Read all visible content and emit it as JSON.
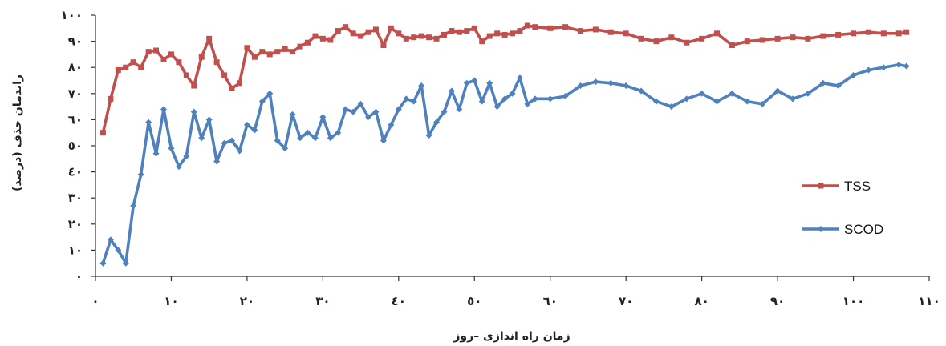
{
  "chart_data": {
    "type": "line",
    "xlabel": "زمان راه اندازی –روز",
    "ylabel": "راندمان حذف  (درصد)",
    "xlim": [
      0,
      110
    ],
    "ylim": [
      0,
      100
    ],
    "x_ticks": [
      "٠",
      "١٠",
      "٢٠",
      "٣٠",
      "٤٠",
      "٥٠",
      "٦٠",
      "٧٠",
      "٨٠",
      "٩٠",
      "١٠٠",
      "١١٠"
    ],
    "y_ticks": [
      "٠",
      "١٠",
      "٢٠",
      "٣٠",
      "٤٠",
      "٥٠",
      "٦٠",
      "٧٠",
      "٨٠",
      "٩٠",
      "١٠٠"
    ],
    "grid": false,
    "legend": "right",
    "series": [
      {
        "name": "TSS",
        "color": "#c0504d",
        "marker": "square",
        "points": [
          [
            1,
            55
          ],
          [
            2,
            68
          ],
          [
            3,
            79
          ],
          [
            4,
            80
          ],
          [
            5,
            82
          ],
          [
            6,
            80
          ],
          [
            7,
            86
          ],
          [
            8,
            86.5
          ],
          [
            9,
            83
          ],
          [
            10,
            85
          ],
          [
            11,
            82
          ],
          [
            12,
            77
          ],
          [
            13,
            73
          ],
          [
            14,
            84
          ],
          [
            15,
            91
          ],
          [
            16,
            82
          ],
          [
            17,
            77
          ],
          [
            18,
            72
          ],
          [
            19,
            74
          ],
          [
            20,
            87.5
          ],
          [
            21,
            84
          ],
          [
            22,
            86
          ],
          [
            23,
            85
          ],
          [
            24,
            86
          ],
          [
            25,
            87
          ],
          [
            26,
            86
          ],
          [
            27,
            88
          ],
          [
            28,
            89.5
          ],
          [
            29,
            92
          ],
          [
            30,
            91
          ],
          [
            31,
            90.5
          ],
          [
            32,
            94
          ],
          [
            33,
            95.5
          ],
          [
            34,
            93
          ],
          [
            35,
            92
          ],
          [
            36,
            93.5
          ],
          [
            37,
            94.5
          ],
          [
            38,
            88.5
          ],
          [
            39,
            95
          ],
          [
            40,
            93
          ],
          [
            41,
            91
          ],
          [
            42,
            91.5
          ],
          [
            43,
            92
          ],
          [
            44,
            91.5
          ],
          [
            45,
            91
          ],
          [
            46,
            92.5
          ],
          [
            47,
            94
          ],
          [
            48,
            93.5
          ],
          [
            49,
            94
          ],
          [
            50,
            95
          ],
          [
            51,
            90
          ],
          [
            52,
            92
          ],
          [
            53,
            93
          ],
          [
            54,
            92.5
          ],
          [
            55,
            93
          ],
          [
            56,
            94
          ],
          [
            57,
            96
          ],
          [
            58,
            95.5
          ],
          [
            60,
            95
          ],
          [
            62,
            95.5
          ],
          [
            64,
            94
          ],
          [
            66,
            94.5
          ],
          [
            68,
            93.5
          ],
          [
            70,
            93
          ],
          [
            72,
            91
          ],
          [
            74,
            90
          ],
          [
            76,
            91.5
          ],
          [
            78,
            89.5
          ],
          [
            80,
            91
          ],
          [
            82,
            93
          ],
          [
            84,
            88.5
          ],
          [
            86,
            90
          ],
          [
            88,
            90.5
          ],
          [
            90,
            91
          ],
          [
            92,
            91.5
          ],
          [
            94,
            91
          ],
          [
            96,
            92
          ],
          [
            98,
            92.5
          ],
          [
            100,
            93
          ],
          [
            102,
            93.5
          ],
          [
            104,
            93
          ],
          [
            106,
            93
          ],
          [
            107,
            93.5
          ]
        ]
      },
      {
        "name": "SCOD",
        "color": "#4f81bd",
        "marker": "diamond",
        "points": [
          [
            1,
            5
          ],
          [
            2,
            14
          ],
          [
            3,
            10
          ],
          [
            4,
            5
          ],
          [
            5,
            27
          ],
          [
            6,
            39
          ],
          [
            7,
            59
          ],
          [
            8,
            47
          ],
          [
            9,
            64
          ],
          [
            10,
            49
          ],
          [
            11,
            42
          ],
          [
            12,
            46
          ],
          [
            13,
            63
          ],
          [
            14,
            53
          ],
          [
            15,
            60
          ],
          [
            16,
            44
          ],
          [
            17,
            51
          ],
          [
            18,
            52
          ],
          [
            19,
            48
          ],
          [
            20,
            58
          ],
          [
            21,
            56
          ],
          [
            22,
            67
          ],
          [
            23,
            70
          ],
          [
            24,
            52
          ],
          [
            25,
            49
          ],
          [
            26,
            62
          ],
          [
            27,
            53
          ],
          [
            28,
            55
          ],
          [
            29,
            53
          ],
          [
            30,
            61
          ],
          [
            31,
            53
          ],
          [
            32,
            55
          ],
          [
            33,
            64
          ],
          [
            34,
            63
          ],
          [
            35,
            66
          ],
          [
            36,
            61
          ],
          [
            37,
            63
          ],
          [
            38,
            52
          ],
          [
            39,
            58
          ],
          [
            40,
            64
          ],
          [
            41,
            68
          ],
          [
            42,
            67
          ],
          [
            43,
            73
          ],
          [
            44,
            54
          ],
          [
            45,
            59
          ],
          [
            46,
            63
          ],
          [
            47,
            71
          ],
          [
            48,
            64
          ],
          [
            49,
            74
          ],
          [
            50,
            75
          ],
          [
            51,
            67
          ],
          [
            52,
            74
          ],
          [
            53,
            65
          ],
          [
            54,
            68
          ],
          [
            55,
            70
          ],
          [
            56,
            76
          ],
          [
            57,
            66
          ],
          [
            58,
            68
          ],
          [
            60,
            68
          ],
          [
            62,
            69
          ],
          [
            64,
            73
          ],
          [
            66,
            74.5
          ],
          [
            68,
            74
          ],
          [
            70,
            73
          ],
          [
            72,
            71
          ],
          [
            74,
            67
          ],
          [
            76,
            65
          ],
          [
            78,
            68
          ],
          [
            80,
            70
          ],
          [
            82,
            67
          ],
          [
            84,
            70
          ],
          [
            86,
            67
          ],
          [
            88,
            66
          ],
          [
            90,
            71
          ],
          [
            92,
            68
          ],
          [
            94,
            70
          ],
          [
            96,
            74
          ],
          [
            98,
            73
          ],
          [
            100,
            77
          ],
          [
            102,
            79
          ],
          [
            104,
            80
          ],
          [
            106,
            81
          ],
          [
            107,
            80.5
          ]
        ]
      }
    ]
  }
}
